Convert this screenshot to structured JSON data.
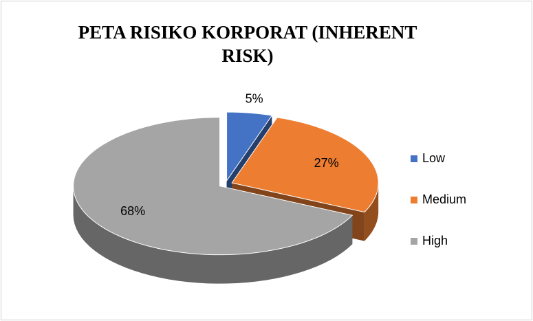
{
  "chart_data": {
    "type": "pie",
    "title": "PETA RISIKO KORPORAT (INHERENT RISK)",
    "categories": [
      "Low",
      "Medium",
      "High"
    ],
    "values": [
      5,
      27,
      68
    ],
    "value_labels": [
      "5%",
      "27%",
      "68%"
    ],
    "colors": [
      "#4472c4",
      "#ed7d31",
      "#a5a5a5"
    ],
    "legend": "right"
  }
}
